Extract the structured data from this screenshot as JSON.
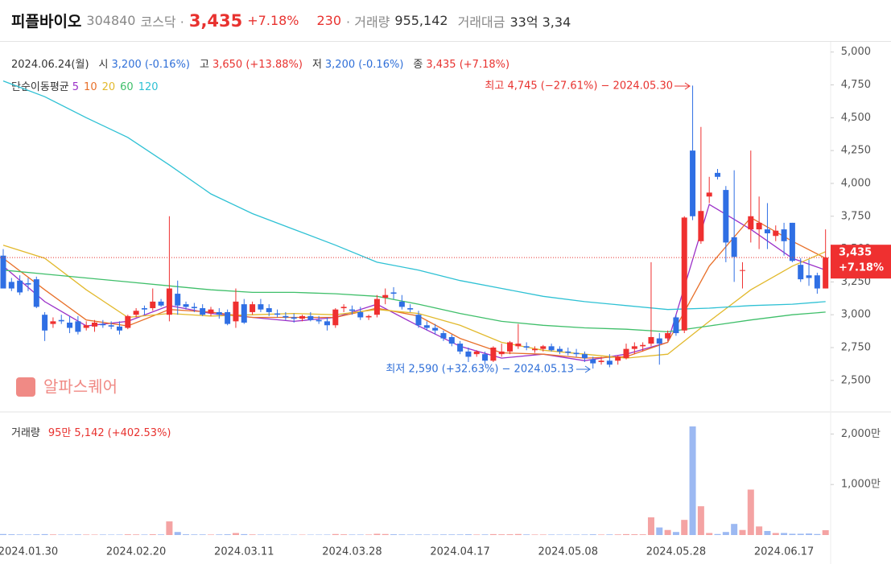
{
  "header": {
    "name": "피플바이오",
    "code": "304840",
    "market": "코스닥 ·",
    "price": "3,435",
    "change_pct": "+7.18%",
    "change": "230",
    "volume_label": "· 거래량",
    "volume": "955,142",
    "amount_label": "거래대금",
    "amount": "33억 3,34"
  },
  "info": {
    "date": "2024.06.24(월)",
    "items": [
      {
        "label": "시",
        "value": "3,200 (-0.16%)"
      },
      {
        "label": "고",
        "value": "3,650 (+13.88%)"
      },
      {
        "label": "저",
        "value": "3,200 (-0.16%)"
      },
      {
        "label": "종",
        "value": "3,435 (+7.18%)"
      }
    ],
    "ma_title": "단순이동평균"
  },
  "watermark": "알파스퀘어",
  "chart_data": [
    {
      "type": "candlestick",
      "up_color": "#ef3030",
      "down_color": "#2f6fe4",
      "categories": [
        null,
        null,
        null,
        "2024.01.30",
        null,
        null,
        null,
        null,
        null,
        null,
        null,
        null,
        null,
        null,
        null,
        null,
        "2024.02.20",
        null,
        null,
        null,
        null,
        null,
        null,
        null,
        null,
        null,
        null,
        null,
        null,
        "2024.03.11",
        null,
        null,
        null,
        null,
        null,
        null,
        null,
        null,
        null,
        null,
        null,
        null,
        "2024.03.28",
        null,
        null,
        null,
        null,
        null,
        null,
        null,
        null,
        null,
        null,
        null,
        null,
        "2024.04.17",
        null,
        null,
        null,
        null,
        null,
        null,
        null,
        null,
        null,
        null,
        null,
        null,
        "2024.05.08",
        null,
        null,
        null,
        null,
        null,
        null,
        null,
        null,
        null,
        null,
        null,
        null,
        "2024.05.28",
        null,
        null,
        null,
        null,
        null,
        null,
        null,
        null,
        null,
        null,
        null,
        null,
        "2024.06.17",
        null,
        null,
        null,
        null,
        null
      ],
      "open": [
        3450,
        3250,
        3260,
        3240,
        3270,
        3000,
        2930,
        2960,
        2940,
        2950,
        2900,
        2910,
        2930,
        2920,
        2910,
        2900,
        3000,
        3050,
        3050,
        3100,
        3000,
        3160,
        3080,
        3060,
        3050,
        3010,
        3020,
        3020,
        2950,
        3080,
        3020,
        3080,
        3050,
        3010,
        2990,
        2980,
        2970,
        2990,
        2960,
        2950,
        2920,
        3050,
        3040,
        3020,
        2980,
        3000,
        3130,
        3170,
        3100,
        3050,
        3000,
        2920,
        2900,
        2860,
        2830,
        2780,
        2720,
        2700,
        2700,
        2650,
        2700,
        2720,
        2760,
        2760,
        2730,
        2740,
        2760,
        2740,
        2720,
        2710,
        2700,
        2660,
        2640,
        2650,
        2650,
        2670,
        2740,
        2760,
        2780,
        2820,
        2820,
        2980,
        2880,
        4250,
        3560,
        3900,
        4080,
        3950,
        3590,
        3340,
        3650,
        3650,
        3650,
        3600,
        3650,
        3700,
        3380,
        3300,
        3300,
        3200
      ],
      "high": [
        3500,
        3280,
        3300,
        3280,
        3290,
        3020,
        2980,
        3000,
        2990,
        2990,
        2950,
        2960,
        2960,
        2950,
        2950,
        3000,
        3050,
        3070,
        3200,
        3120,
        3750,
        3260,
        3100,
        3090,
        3080,
        3060,
        3050,
        3040,
        3200,
        3120,
        3100,
        3120,
        3080,
        3040,
        3020,
        3010,
        3000,
        3020,
        2990,
        2980,
        3050,
        3080,
        3070,
        3060,
        3000,
        3150,
        3200,
        3210,
        3150,
        3080,
        3030,
        2950,
        2930,
        2880,
        2850,
        2800,
        2750,
        2730,
        2720,
        2760,
        2780,
        2800,
        2930,
        2790,
        2760,
        2770,
        2780,
        2760,
        2750,
        2740,
        2720,
        2680,
        2680,
        2700,
        2690,
        2780,
        2790,
        2790,
        3400,
        2860,
        2880,
        3000,
        3750,
        4745,
        4430,
        4050,
        4110,
        3980,
        4100,
        3400,
        4250,
        3900,
        3850,
        3680,
        3700,
        3700,
        3430,
        3420,
        3320,
        3650
      ],
      "low": [
        3200,
        3180,
        3150,
        3180,
        3050,
        2800,
        2900,
        2930,
        2860,
        2850,
        2880,
        2870,
        2900,
        2890,
        2850,
        2890,
        2980,
        3000,
        3030,
        3060,
        2950,
        3000,
        3040,
        3020,
        2990,
        2990,
        2970,
        2920,
        2900,
        2930,
        3000,
        3020,
        2990,
        2980,
        2960,
        2940,
        2950,
        2950,
        2930,
        2880,
        2900,
        3020,
        3000,
        2960,
        2960,
        2980,
        3080,
        3120,
        3040,
        3020,
        2900,
        2880,
        2850,
        2800,
        2760,
        2700,
        2640,
        2680,
        2620,
        2640,
        2680,
        2700,
        2740,
        2730,
        2710,
        2720,
        2720,
        2700,
        2690,
        2680,
        2640,
        2590,
        2620,
        2600,
        2620,
        2660,
        2700,
        2720,
        2760,
        2620,
        2800,
        2840,
        2860,
        3720,
        3540,
        3850,
        4030,
        3400,
        3250,
        3200,
        3550,
        3500,
        3500,
        3560,
        3450,
        3400,
        3250,
        3220,
        3160,
        3200
      ],
      "close": [
        3200,
        3200,
        3170,
        3230,
        3060,
        2880,
        2950,
        2950,
        2900,
        2870,
        2920,
        2940,
        2920,
        2910,
        2880,
        2990,
        3030,
        3040,
        3100,
        3070,
        3200,
        3070,
        3060,
        3050,
        3000,
        3040,
        3000,
        2930,
        3100,
        2940,
        3080,
        3040,
        3020,
        3000,
        2980,
        2970,
        2990,
        2960,
        2950,
        2920,
        3040,
        3060,
        3030,
        2980,
        2990,
        3120,
        3150,
        3160,
        3060,
        3040,
        2920,
        2900,
        2880,
        2820,
        2780,
        2720,
        2680,
        2720,
        2650,
        2750,
        2720,
        2790,
        2780,
        2750,
        2740,
        2760,
        2730,
        2720,
        2710,
        2700,
        2670,
        2630,
        2650,
        2620,
        2680,
        2740,
        2760,
        2770,
        2830,
        2780,
        2860,
        2860,
        3740,
        3750,
        3790,
        3930,
        4050,
        3550,
        3440,
        3340,
        3750,
        3700,
        3620,
        3640,
        3560,
        3410,
        3270,
        3280,
        3200,
        3435
      ],
      "ma": [
        {
          "name": "5",
          "color": "#9b30c8",
          "x": [
            0,
            5,
            10,
            15,
            20,
            25,
            30,
            35,
            40,
            45,
            50,
            55,
            60,
            65,
            70,
            75,
            80,
            85,
            90,
            95,
            99
          ],
          "values": [
            3370,
            3100,
            2915,
            2950,
            3070,
            3010,
            2980,
            2950,
            2980,
            3080,
            2915,
            2760,
            2670,
            2700,
            2650,
            2700,
            2790,
            3840,
            3650,
            3430,
            3340
          ]
        },
        {
          "name": "10",
          "color": "#e8702a",
          "x": [
            0,
            5,
            10,
            15,
            20,
            25,
            30,
            35,
            40,
            45,
            50,
            55,
            60,
            65,
            70,
            75,
            80,
            85,
            90,
            95,
            99
          ],
          "values": [
            3430,
            3190,
            2960,
            2915,
            3040,
            3020,
            2980,
            2980,
            2980,
            3050,
            2990,
            2820,
            2710,
            2700,
            2670,
            2680,
            2790,
            3370,
            3740,
            3560,
            3430
          ]
        },
        {
          "name": "20",
          "color": "#e2b92c",
          "x": [
            0,
            5,
            10,
            15,
            20,
            25,
            30,
            35,
            40,
            45,
            50,
            55,
            60,
            65,
            70,
            75,
            80,
            85,
            90,
            95,
            99
          ],
          "values": [
            3530,
            3430,
            3190,
            2980,
            3010,
            2990,
            3000,
            3010,
            3000,
            3040,
            3010,
            2920,
            2790,
            2730,
            2700,
            2670,
            2700,
            2950,
            3190,
            3370,
            3480
          ]
        },
        {
          "name": "60",
          "color": "#3fbf6a",
          "x": [
            0,
            5,
            10,
            15,
            20,
            25,
            30,
            35,
            40,
            45,
            50,
            55,
            60,
            65,
            70,
            75,
            80,
            85,
            90,
            95,
            99
          ],
          "values": [
            3340,
            3310,
            3280,
            3250,
            3220,
            3190,
            3170,
            3170,
            3160,
            3140,
            3080,
            3010,
            2950,
            2920,
            2900,
            2890,
            2870,
            2915,
            2960,
            3000,
            3020
          ]
        },
        {
          "name": "120",
          "color": "#2ec1d4",
          "x": [
            0,
            5,
            10,
            15,
            20,
            25,
            30,
            35,
            40,
            45,
            50,
            55,
            60,
            65,
            70,
            75,
            80,
            85,
            90,
            95,
            99
          ],
          "values": [
            4780,
            4660,
            4500,
            4350,
            4140,
            3920,
            3770,
            3650,
            3530,
            3400,
            3340,
            3260,
            3200,
            3140,
            3100,
            3070,
            3040,
            3050,
            3070,
            3080,
            3100
          ]
        }
      ],
      "ylim": [
        2260,
        5090
      ],
      "yticks": [
        {
          "value": 2500,
          "label": "2,500"
        },
        {
          "value": 2750,
          "label": "2,750"
        },
        {
          "value": 3000,
          "label": "3,000"
        },
        {
          "value": 3250,
          "label": "3,250"
        },
        {
          "value": 3500,
          "label": "3,500"
        },
        {
          "value": 3750,
          "label": "3,750"
        },
        {
          "value": 4000,
          "label": "4,000"
        },
        {
          "value": 4250,
          "label": "4,250"
        },
        {
          "value": 4500,
          "label": "4,500"
        },
        {
          "value": 4750,
          "label": "4,750"
        },
        {
          "value": 5000,
          "label": "5,000"
        }
      ],
      "last_price_label": "3,435",
      "last_change_label": "+7.18%",
      "annotations": [
        {
          "text": "최고 4,745 (−27.61%) − 2024.05.30",
          "color": "#e8322f"
        },
        {
          "text": "최저 2,590 (+32.63%) − 2024.05.13",
          "color": "#2f6fd8"
        }
      ]
    },
    {
      "type": "bar",
      "label": "거래량",
      "current": "95만",
      "current2": "5,142",
      "current_change": "(+402.53%)",
      "up_color": "#f4a3a3",
      "down_color": "#9cb9f2",
      "values": [
        20,
        15,
        12,
        10,
        14,
        18,
        12,
        10,
        10,
        12,
        10,
        9,
        10,
        9,
        9,
        14,
        12,
        10,
        15,
        12,
        270,
        60,
        15,
        12,
        12,
        10,
        12,
        15,
        40,
        18,
        12,
        10,
        9,
        9,
        8,
        8,
        8,
        8,
        8,
        9,
        20,
        14,
        10,
        10,
        10,
        25,
        20,
        15,
        12,
        10,
        12,
        10,
        10,
        12,
        12,
        12,
        15,
        10,
        12,
        18,
        14,
        15,
        20,
        12,
        10,
        10,
        10,
        9,
        9,
        9,
        10,
        14,
        10,
        12,
        12,
        18,
        15,
        14,
        350,
        150,
        100,
        60,
        300,
        2150,
        570,
        40,
        20,
        60,
        220,
        100,
        900,
        170,
        80,
        40,
        40,
        25,
        25,
        30,
        20,
        95.5
      ],
      "ylim": [
        0,
        2150
      ],
      "yticks": [
        {
          "value": 1000,
          "label": "1,000만"
        },
        {
          "value": 2000,
          "label": "2,000만"
        }
      ]
    }
  ]
}
